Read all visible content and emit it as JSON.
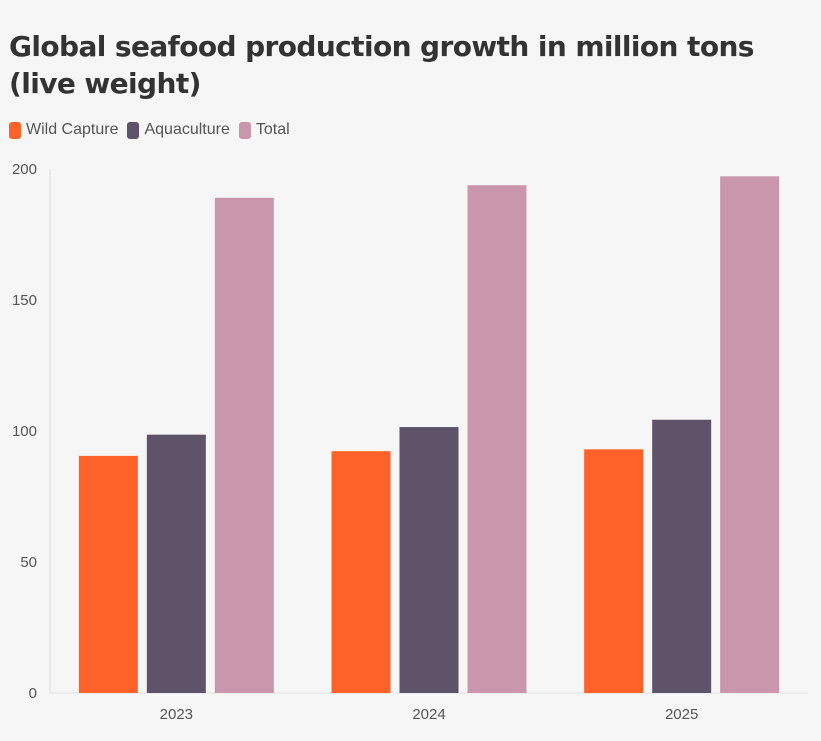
{
  "chart_data": {
    "type": "bar",
    "title": "Global seafood production growth in million tons (live weight)",
    "categories": [
      "2023",
      "2024",
      "2025"
    ],
    "series": [
      {
        "name": "Wild Capture",
        "color": "#ff6228",
        "values": [
          90.5,
          92.3,
          93
        ]
      },
      {
        "name": "Aquaculture",
        "color": "#5e5368",
        "values": [
          98.6,
          101.5,
          104.3
        ]
      },
      {
        "name": "Total",
        "color": "#c996ac",
        "values": [
          189,
          193.8,
          197.2
        ]
      }
    ],
    "ylim": [
      0,
      200
    ],
    "yticks": [
      0,
      50,
      100,
      150,
      200
    ],
    "xlabel": "",
    "ylabel": "",
    "grid": false,
    "legend": "top-left"
  }
}
